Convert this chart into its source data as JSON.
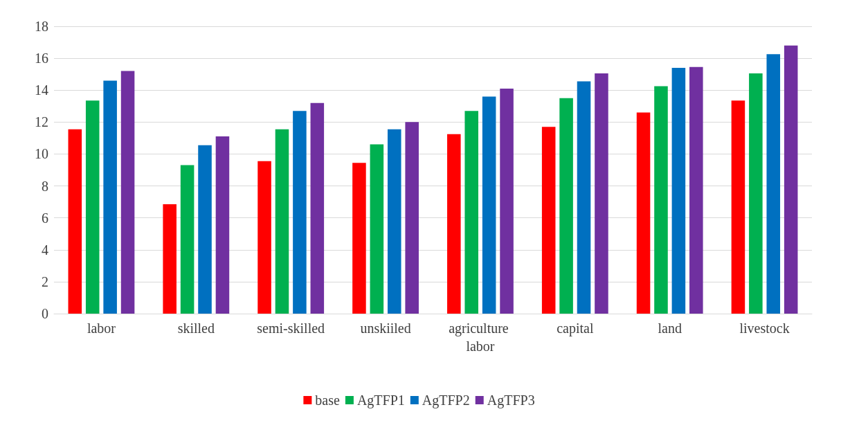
{
  "chart_data": {
    "type": "bar",
    "categories": [
      "labor",
      "skilled",
      "semi-skilled",
      "unskiiled",
      "agriculture labor",
      "capital",
      "land",
      "livestock"
    ],
    "series": [
      {
        "name": "base",
        "color": "#ff0000",
        "values": [
          11.55,
          6.85,
          9.55,
          9.45,
          11.25,
          11.7,
          12.6,
          13.35
        ]
      },
      {
        "name": "AgTFP1",
        "color": "#00b050",
        "values": [
          13.35,
          9.3,
          11.55,
          10.6,
          12.7,
          13.5,
          14.25,
          15.05
        ]
      },
      {
        "name": "AgTFP2",
        "color": "#0070c0",
        "values": [
          14.6,
          10.55,
          12.7,
          11.55,
          13.6,
          14.55,
          15.4,
          16.25
        ]
      },
      {
        "name": "AgTFP3",
        "color": "#7030a0",
        "values": [
          15.2,
          11.1,
          13.2,
          12.0,
          14.1,
          15.05,
          15.45,
          16.8
        ]
      }
    ],
    "ylim": [
      0,
      18
    ],
    "yticks": [
      0,
      2,
      4,
      6,
      8,
      10,
      12,
      14,
      16,
      18
    ],
    "grid": "y",
    "legend": "bottom"
  }
}
